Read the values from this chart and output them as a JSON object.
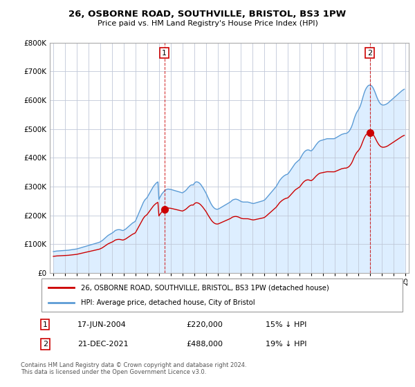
{
  "title": "26, OSBORNE ROAD, SOUTHVILLE, BRISTOL, BS3 1PW",
  "subtitle": "Price paid vs. HM Land Registry's House Price Index (HPI)",
  "legend_line1": "26, OSBORNE ROAD, SOUTHVILLE, BRISTOL, BS3 1PW (detached house)",
  "legend_line2": "HPI: Average price, detached house, City of Bristol",
  "annotation1_date": "17-JUN-2004",
  "annotation1_price": "£220,000",
  "annotation1_hpi": "15% ↓ HPI",
  "annotation1_year": 2004.46,
  "annotation1_value": 220000,
  "annotation2_date": "21-DEC-2021",
  "annotation2_price": "£488,000",
  "annotation2_hpi": "19% ↓ HPI",
  "annotation2_year": 2021.97,
  "annotation2_value": 488000,
  "footer": "Contains HM Land Registry data © Crown copyright and database right 2024.\nThis data is licensed under the Open Government Licence v3.0.",
  "hpi_color": "#5b9bd5",
  "price_color": "#cc0000",
  "dashed_color": "#cc0000",
  "bg_color": "#ddeeff",
  "grid_color": "#c0c8d8",
  "ylim_min": 0,
  "ylim_max": 800000,
  "hpi_monthly_years": [
    1995.0,
    1995.083,
    1995.167,
    1995.25,
    1995.333,
    1995.417,
    1995.5,
    1995.583,
    1995.667,
    1995.75,
    1995.833,
    1995.917,
    1996.0,
    1996.083,
    1996.167,
    1996.25,
    1996.333,
    1996.417,
    1996.5,
    1996.583,
    1996.667,
    1996.75,
    1996.833,
    1996.917,
    1997.0,
    1997.083,
    1997.167,
    1997.25,
    1997.333,
    1997.417,
    1997.5,
    1997.583,
    1997.667,
    1997.75,
    1997.833,
    1997.917,
    1998.0,
    1998.083,
    1998.167,
    1998.25,
    1998.333,
    1998.417,
    1998.5,
    1998.583,
    1998.667,
    1998.75,
    1998.833,
    1998.917,
    1999.0,
    1999.083,
    1999.167,
    1999.25,
    1999.333,
    1999.417,
    1999.5,
    1999.583,
    1999.667,
    1999.75,
    1999.833,
    1999.917,
    2000.0,
    2000.083,
    2000.167,
    2000.25,
    2000.333,
    2000.417,
    2000.5,
    2000.583,
    2000.667,
    2000.75,
    2000.833,
    2000.917,
    2001.0,
    2001.083,
    2001.167,
    2001.25,
    2001.333,
    2001.417,
    2001.5,
    2001.583,
    2001.667,
    2001.75,
    2001.833,
    2001.917,
    2002.0,
    2002.083,
    2002.167,
    2002.25,
    2002.333,
    2002.417,
    2002.5,
    2002.583,
    2002.667,
    2002.75,
    2002.833,
    2002.917,
    2003.0,
    2003.083,
    2003.167,
    2003.25,
    2003.333,
    2003.417,
    2003.5,
    2003.583,
    2003.667,
    2003.75,
    2003.833,
    2003.917,
    2004.0,
    2004.083,
    2004.167,
    2004.25,
    2004.333,
    2004.417,
    2004.5,
    2004.583,
    2004.667,
    2004.75,
    2004.833,
    2004.917,
    2005.0,
    2005.083,
    2005.167,
    2005.25,
    2005.333,
    2005.417,
    2005.5,
    2005.583,
    2005.667,
    2005.75,
    2005.833,
    2005.917,
    2006.0,
    2006.083,
    2006.167,
    2006.25,
    2006.333,
    2006.417,
    2006.5,
    2006.583,
    2006.667,
    2006.75,
    2006.833,
    2006.917,
    2007.0,
    2007.083,
    2007.167,
    2007.25,
    2007.333,
    2007.417,
    2007.5,
    2007.583,
    2007.667,
    2007.75,
    2007.833,
    2007.917,
    2008.0,
    2008.083,
    2008.167,
    2008.25,
    2008.333,
    2008.417,
    2008.5,
    2008.583,
    2008.667,
    2008.75,
    2008.833,
    2008.917,
    2009.0,
    2009.083,
    2009.167,
    2009.25,
    2009.333,
    2009.417,
    2009.5,
    2009.583,
    2009.667,
    2009.75,
    2009.833,
    2009.917,
    2010.0,
    2010.083,
    2010.167,
    2010.25,
    2010.333,
    2010.417,
    2010.5,
    2010.583,
    2010.667,
    2010.75,
    2010.833,
    2010.917,
    2011.0,
    2011.083,
    2011.167,
    2011.25,
    2011.333,
    2011.417,
    2011.5,
    2011.583,
    2011.667,
    2011.75,
    2011.833,
    2011.917,
    2012.0,
    2012.083,
    2012.167,
    2012.25,
    2012.333,
    2012.417,
    2012.5,
    2012.583,
    2012.667,
    2012.75,
    2012.833,
    2012.917,
    2013.0,
    2013.083,
    2013.167,
    2013.25,
    2013.333,
    2013.417,
    2013.5,
    2013.583,
    2013.667,
    2013.75,
    2013.833,
    2013.917,
    2014.0,
    2014.083,
    2014.167,
    2014.25,
    2014.333,
    2014.417,
    2014.5,
    2014.583,
    2014.667,
    2014.75,
    2014.833,
    2014.917,
    2015.0,
    2015.083,
    2015.167,
    2015.25,
    2015.333,
    2015.417,
    2015.5,
    2015.583,
    2015.667,
    2015.75,
    2015.833,
    2015.917,
    2016.0,
    2016.083,
    2016.167,
    2016.25,
    2016.333,
    2016.417,
    2016.5,
    2016.583,
    2016.667,
    2016.75,
    2016.833,
    2016.917,
    2017.0,
    2017.083,
    2017.167,
    2017.25,
    2017.333,
    2017.417,
    2017.5,
    2017.583,
    2017.667,
    2017.75,
    2017.833,
    2017.917,
    2018.0,
    2018.083,
    2018.167,
    2018.25,
    2018.333,
    2018.417,
    2018.5,
    2018.583,
    2018.667,
    2018.75,
    2018.833,
    2018.917,
    2019.0,
    2019.083,
    2019.167,
    2019.25,
    2019.333,
    2019.417,
    2019.5,
    2019.583,
    2019.667,
    2019.75,
    2019.833,
    2019.917,
    2020.0,
    2020.083,
    2020.167,
    2020.25,
    2020.333,
    2020.417,
    2020.5,
    2020.583,
    2020.667,
    2020.75,
    2020.833,
    2020.917,
    2021.0,
    2021.083,
    2021.167,
    2021.25,
    2021.333,
    2021.417,
    2021.5,
    2021.583,
    2021.667,
    2021.75,
    2021.833,
    2021.917,
    2022.0,
    2022.083,
    2022.167,
    2022.25,
    2022.333,
    2022.417,
    2022.5,
    2022.583,
    2022.667,
    2022.75,
    2022.833,
    2022.917,
    2023.0,
    2023.083,
    2023.167,
    2023.25,
    2023.333,
    2023.417,
    2023.5,
    2023.583,
    2023.667,
    2023.75,
    2023.833,
    2023.917,
    2024.0,
    2024.083,
    2024.167,
    2024.25,
    2024.333,
    2024.417,
    2024.5,
    2024.583,
    2024.667,
    2024.75,
    2024.833,
    2024.917
  ],
  "hpi_monthly_values": [
    74000,
    74500,
    75000,
    75500,
    76000,
    76000,
    76500,
    76500,
    77000,
    77000,
    77500,
    77500,
    78000,
    78000,
    78500,
    78500,
    79000,
    79500,
    80000,
    80500,
    81000,
    81500,
    82000,
    82500,
    83000,
    84000,
    85000,
    86000,
    87000,
    88000,
    89000,
    90000,
    91000,
    92000,
    93000,
    94000,
    95000,
    96000,
    97000,
    98000,
    99000,
    100000,
    101000,
    102000,
    103000,
    104000,
    105000,
    106000,
    108000,
    110000,
    112000,
    115000,
    118000,
    121000,
    124000,
    127000,
    130000,
    132000,
    134000,
    136000,
    138000,
    140000,
    143000,
    146000,
    148000,
    149000,
    150000,
    150000,
    150000,
    149000,
    148000,
    147000,
    148000,
    150000,
    152000,
    155000,
    158000,
    161000,
    164000,
    167000,
    170000,
    173000,
    175000,
    177000,
    180000,
    188000,
    196000,
    204000,
    212000,
    220000,
    228000,
    236000,
    244000,
    250000,
    255000,
    258000,
    262000,
    268000,
    274000,
    280000,
    286000,
    292000,
    298000,
    303000,
    307000,
    311000,
    314000,
    316000,
    255000,
    262000,
    268000,
    274000,
    278000,
    282000,
    286000,
    288000,
    290000,
    291000,
    291000,
    290000,
    290000,
    289000,
    288000,
    287000,
    286000,
    285000,
    284000,
    283000,
    282000,
    281000,
    280000,
    279000,
    278000,
    280000,
    282000,
    285000,
    288000,
    292000,
    296000,
    300000,
    303000,
    305000,
    306000,
    305000,
    310000,
    314000,
    316000,
    316000,
    315000,
    313000,
    310000,
    306000,
    301000,
    296000,
    290000,
    284000,
    278000,
    271000,
    263000,
    256000,
    249000,
    242000,
    236000,
    231000,
    227000,
    224000,
    222000,
    221000,
    221000,
    222000,
    224000,
    226000,
    228000,
    230000,
    232000,
    234000,
    236000,
    238000,
    240000,
    242000,
    244000,
    246000,
    249000,
    252000,
    254000,
    255000,
    256000,
    256000,
    255000,
    254000,
    252000,
    250000,
    248000,
    247000,
    246000,
    246000,
    246000,
    246000,
    246000,
    246000,
    245000,
    244000,
    243000,
    242000,
    241000,
    241000,
    242000,
    243000,
    244000,
    245000,
    246000,
    247000,
    248000,
    249000,
    250000,
    251000,
    253000,
    256000,
    260000,
    264000,
    268000,
    272000,
    276000,
    280000,
    284000,
    288000,
    292000,
    296000,
    300000,
    306000,
    312000,
    318000,
    323000,
    327000,
    331000,
    334000,
    337000,
    339000,
    341000,
    342000,
    344000,
    348000,
    353000,
    358000,
    363000,
    368000,
    373000,
    378000,
    382000,
    385000,
    388000,
    391000,
    394000,
    400000,
    406000,
    412000,
    417000,
    421000,
    424000,
    426000,
    427000,
    427000,
    426000,
    424000,
    424000,
    427000,
    431000,
    436000,
    441000,
    446000,
    450000,
    454000,
    457000,
    459000,
    460000,
    461000,
    462000,
    463000,
    464000,
    465000,
    466000,
    466000,
    466000,
    466000,
    466000,
    466000,
    466000,
    466000,
    467000,
    469000,
    471000,
    473000,
    475000,
    477000,
    479000,
    481000,
    482000,
    483000,
    484000,
    484000,
    485000,
    487000,
    490000,
    494000,
    500000,
    507000,
    516000,
    527000,
    538000,
    547000,
    555000,
    561000,
    566000,
    572000,
    580000,
    590000,
    602000,
    614000,
    625000,
    634000,
    641000,
    646000,
    650000,
    652000,
    652000,
    651000,
    648000,
    643000,
    636000,
    628000,
    619000,
    610000,
    602000,
    595000,
    590000,
    586000,
    584000,
    583000,
    583000,
    584000,
    585000,
    587000,
    589000,
    592000,
    595000,
    598000,
    601000,
    604000,
    607000,
    610000,
    613000,
    616000,
    619000,
    622000,
    625000,
    628000,
    631000,
    634000,
    636000,
    638000
  ]
}
